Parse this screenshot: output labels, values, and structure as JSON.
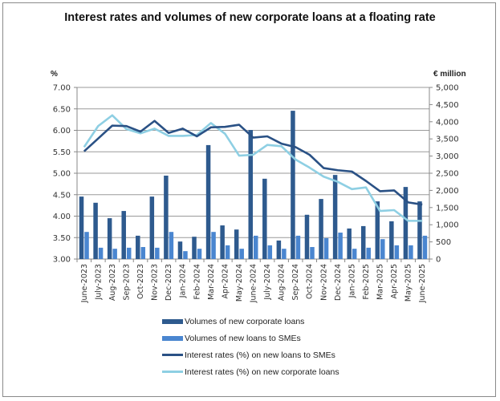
{
  "chart_data": {
    "type": "bar",
    "title": "Interest rates and volumes of new corporate loans at a floating rate",
    "ylabel_left": "%",
    "ylabel_right": "€ million",
    "left_axis": {
      "range": [
        3.0,
        7.0
      ],
      "ticks": [
        "3.00",
        "3.50",
        "4.00",
        "4.50",
        "5.00",
        "5.50",
        "6.00",
        "6.50",
        "7.00"
      ]
    },
    "right_axis": {
      "range": [
        0,
        5000
      ],
      "ticks": [
        "0",
        "500",
        "1,000",
        "1,500",
        "2,000",
        "2,500",
        "3,000",
        "3,500",
        "4,000",
        "4,500",
        "5,000"
      ]
    },
    "grid": true,
    "legend_position": "bottom",
    "categories": [
      "June-2023",
      "July-2023",
      "Aug-2023",
      "Sep-2023",
      "Oct-2023",
      "Nov-2023",
      "Dec-2023",
      "Jan-2024",
      "Feb-2024",
      "Mar-2024",
      "Apr-2024",
      "May-2024",
      "June-2024",
      "July-2024",
      "Aug-2024",
      "Sep-2024",
      "Oct-2024",
      "Nov-2024",
      "Dec-2024",
      "Jan-2025",
      "Feb-2025",
      "Mar-2025",
      "Apr-2025",
      "May-2025",
      "June-2025"
    ],
    "series": [
      {
        "name": "Volumes of new corporate loans",
        "type": "bar",
        "axis": "right",
        "color": "#2e5a8e",
        "values": [
          1820,
          1640,
          1190,
          1400,
          680,
          1820,
          2430,
          510,
          650,
          3320,
          980,
          860,
          3760,
          2340,
          540,
          4320,
          1290,
          1750,
          2450,
          890,
          960,
          1680,
          1100,
          2100,
          1680
        ]
      },
      {
        "name": "Volumes of new loans to SMEs",
        "type": "bar",
        "axis": "right",
        "color": "#4a86d0",
        "values": [
          790,
          330,
          300,
          330,
          350,
          330,
          790,
          230,
          300,
          790,
          400,
          300,
          680,
          400,
          300,
          680,
          350,
          610,
          770,
          300,
          330,
          580,
          400,
          400,
          680
        ]
      },
      {
        "name": "Interest rates (%) on new loans to SMEs",
        "type": "line",
        "axis": "left",
        "color": "#2a5185",
        "values": [
          5.51,
          5.81,
          6.11,
          6.1,
          5.97,
          6.22,
          5.94,
          6.04,
          5.86,
          6.07,
          6.08,
          6.13,
          5.83,
          5.86,
          5.69,
          5.61,
          5.43,
          5.12,
          5.07,
          5.04,
          4.82,
          4.58,
          4.6,
          4.32,
          4.27
        ]
      },
      {
        "name": "Interest rates (%) on new corporate loans",
        "type": "line",
        "axis": "left",
        "color": "#8ecfe3",
        "values": [
          5.61,
          6.1,
          6.35,
          6.03,
          5.93,
          6.04,
          5.87,
          5.87,
          5.89,
          6.17,
          5.92,
          5.41,
          5.43,
          5.66,
          5.63,
          5.32,
          5.13,
          4.92,
          4.8,
          4.63,
          4.67,
          4.12,
          4.14,
          3.89,
          3.89
        ]
      }
    ]
  }
}
